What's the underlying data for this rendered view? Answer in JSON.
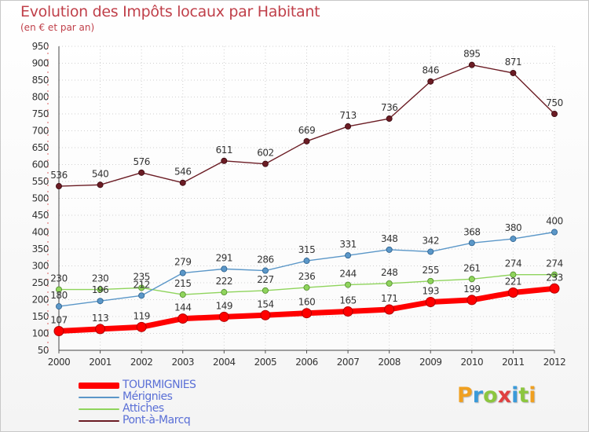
{
  "title": "Evolution des Impôts locaux par Habitant",
  "subtitle": "(en € et par an)",
  "logo": {
    "letters": [
      "P",
      "r",
      "o",
      "x",
      "i",
      "t",
      "i"
    ],
    "colors": [
      "#f0a020",
      "#3a9ad9",
      "#8cc63f",
      "#e04040",
      "#3a9ad9",
      "#8cc63f",
      "#f0a020"
    ]
  },
  "chart_data": {
    "type": "line",
    "x": [
      "2000",
      "2001",
      "2002",
      "2003",
      "2004",
      "2005",
      "2006",
      "2007",
      "2008",
      "2009",
      "2010",
      "2011",
      "2012"
    ],
    "ylim": [
      50,
      950
    ],
    "yticks": [
      "50",
      "100",
      "150",
      "200",
      "250",
      "300",
      "350",
      "400",
      "450",
      "500",
      "550",
      "600",
      "650",
      "700",
      "750",
      "800",
      "850",
      "900",
      "950"
    ],
    "grid": true,
    "legend_placement": "bottom-left",
    "series": [
      {
        "name": "TOURMIGNIES",
        "color": "#ff0000",
        "values": [
          107,
          113,
          119,
          144,
          149,
          154,
          160,
          165,
          171,
          193,
          199,
          221,
          233
        ]
      },
      {
        "name": "Mérignies",
        "color": "#5b97c8",
        "values": [
          180,
          196,
          212,
          279,
          291,
          286,
          315,
          331,
          348,
          342,
          368,
          380,
          400
        ]
      },
      {
        "name": "Attiches",
        "color": "#8fd45c",
        "values": [
          230,
          230,
          235,
          215,
          222,
          227,
          236,
          244,
          248,
          255,
          261,
          274,
          274
        ]
      },
      {
        "name": "Pont-à-Marcq",
        "color": "#6b1c24",
        "values": [
          536,
          540,
          576,
          546,
          611,
          602,
          669,
          713,
          736,
          846,
          895,
          871,
          750
        ]
      }
    ]
  }
}
